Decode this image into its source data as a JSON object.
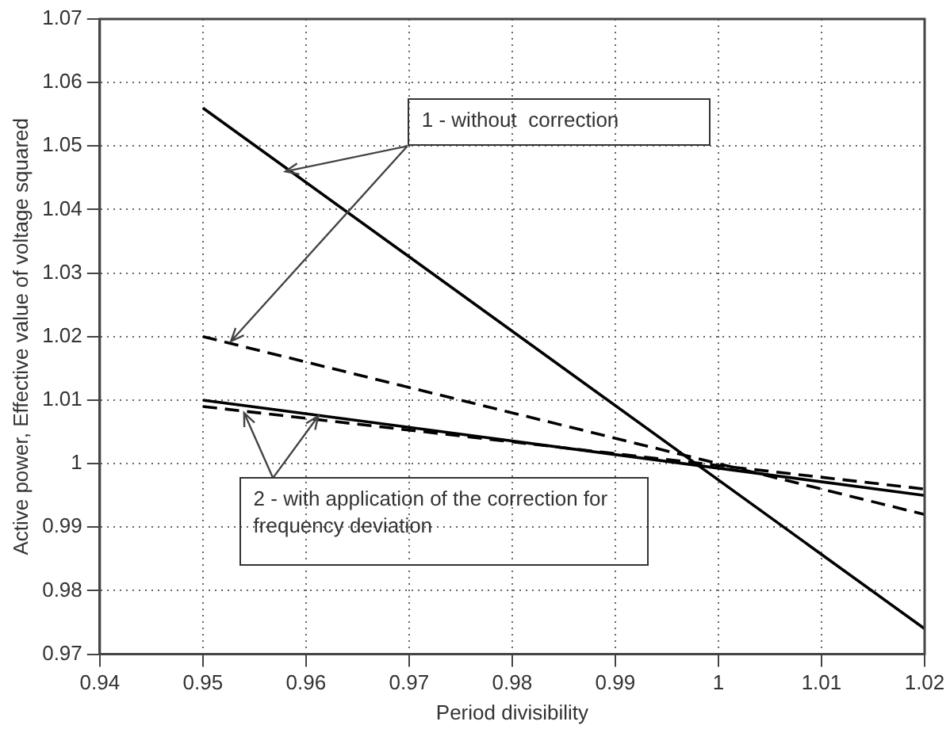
{
  "chart_data": {
    "type": "line",
    "xlabel": "Period divisibility",
    "ylabel": "Active power, Effective value of voltage squared",
    "x": [
      0.95,
      1.02
    ],
    "series": [
      {
        "color": "#000000",
        "line_style": "solid",
        "values": [
          1.056,
          0.974
        ]
      },
      {
        "color": "#000000",
        "line_style": "dashed",
        "values": [
          1.02,
          0.992
        ]
      },
      {
        "color": "#000000",
        "line_style": "solid",
        "values": [
          1.01,
          0.995
        ]
      },
      {
        "color": "#000000",
        "line_style": "dashed",
        "values": [
          1.009,
          0.996
        ]
      }
    ],
    "xlim": [
      0.94,
      1.02
    ],
    "xticks": [
      0.94,
      0.95,
      0.96,
      0.97,
      0.98,
      0.99,
      1,
      1.01,
      1.02
    ],
    "ylim": [
      0.97,
      1.07
    ],
    "yticks": [
      0.97,
      0.98,
      0.99,
      1,
      1.01,
      1.02,
      1.03,
      1.04,
      1.05,
      1.06,
      1.07
    ],
    "grid": true,
    "legend": false,
    "marker": "none",
    "annotations": [
      {
        "text": "1 - without  correction",
        "x": 0.958,
        "y": 1.046
      },
      {
        "text": "2 - with application of the correction for frequency deviation",
        "x": 0.954,
        "y": 1.008
      }
    ]
  }
}
